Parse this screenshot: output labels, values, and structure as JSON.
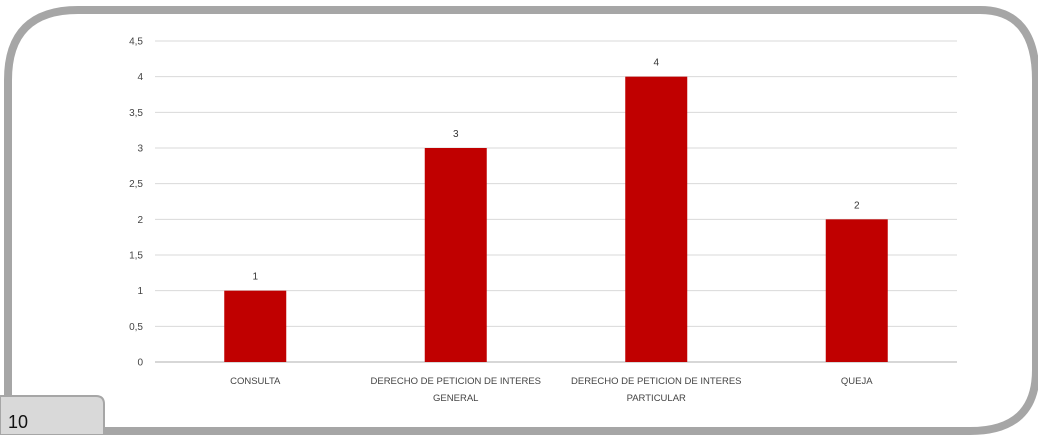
{
  "page_number": "10",
  "colors": {
    "bar": "#c00000",
    "grid": "#d9d9d9",
    "frame": "#a6a6a6",
    "frame_fill": "#ffffff"
  },
  "chart_data": {
    "type": "bar",
    "title": "",
    "xlabel": "",
    "ylabel": "",
    "ylim": [
      0,
      4.5
    ],
    "y_ticks": [
      "0",
      "0,5",
      "1",
      "1,5",
      "2",
      "2,5",
      "3",
      "3,5",
      "4",
      "4,5"
    ],
    "categories": [
      [
        "CONSULTA"
      ],
      [
        "DERECHO DE PETICION DE INTERES",
        "GENERAL"
      ],
      [
        "DERECHO DE PETICION DE INTERES",
        "PARTICULAR"
      ],
      [
        "QUEJA"
      ]
    ],
    "values": [
      1,
      3,
      4,
      2
    ],
    "data_labels": [
      "1",
      "3",
      "4",
      "2"
    ],
    "grid": true,
    "legend": "none"
  }
}
